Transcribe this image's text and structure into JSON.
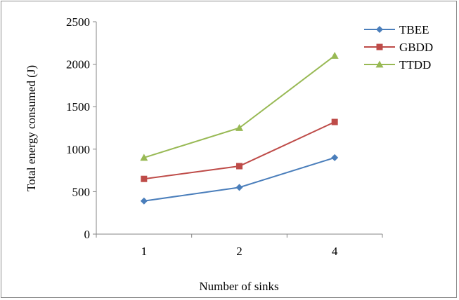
{
  "chart_data": {
    "type": "line",
    "title": "",
    "xlabel": "Number of sinks",
    "ylabel": "Total energy consumed (J)",
    "categories": [
      "1",
      "2",
      "4"
    ],
    "ylim": [
      0,
      2500
    ],
    "yticks": [
      0,
      500,
      1000,
      1500,
      2000,
      2500
    ],
    "grid": false,
    "legend_position": "top-right",
    "series": [
      {
        "name": "TBEE",
        "values": [
          390,
          550,
          900
        ],
        "color": "#4a7ebb",
        "marker": "diamond"
      },
      {
        "name": "GBDD",
        "values": [
          650,
          800,
          1320
        ],
        "color": "#be4b48",
        "marker": "square"
      },
      {
        "name": "TTDD",
        "values": [
          900,
          1250,
          2100
        ],
        "color": "#98b954",
        "marker": "triangle"
      }
    ]
  }
}
